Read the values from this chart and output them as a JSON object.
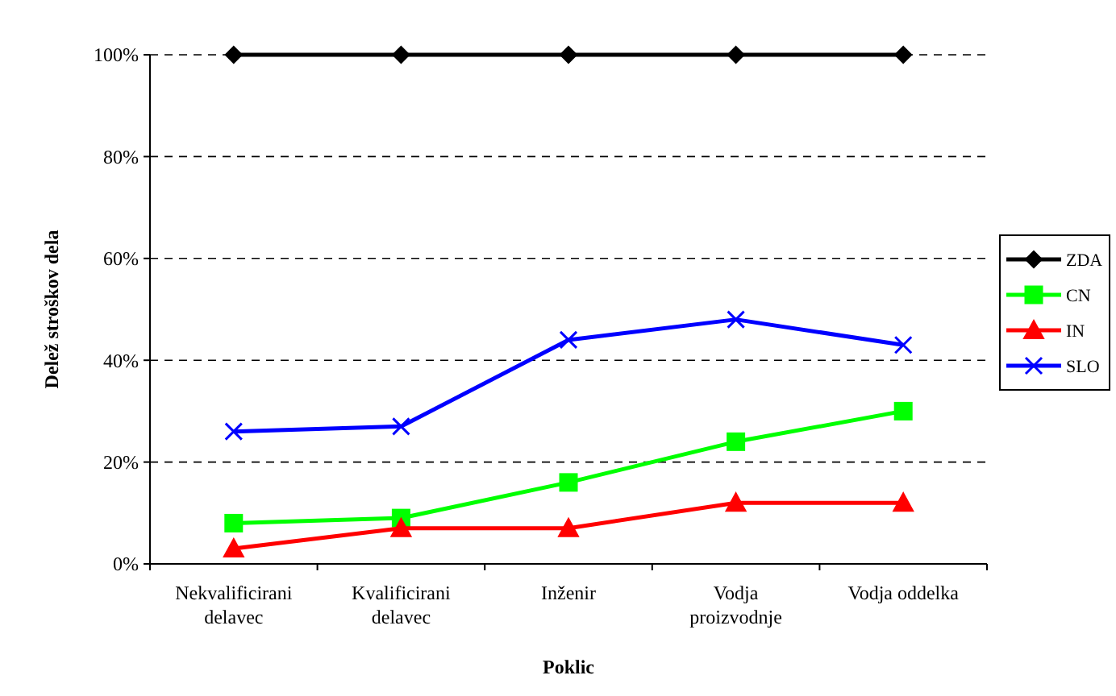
{
  "chart_data": {
    "type": "line",
    "xlabel": "Poklic",
    "ylabel": "Delež stroškov dela",
    "categories": [
      "Nekvalificirani\ndelavec",
      "Kvalificirani\ndelavec",
      "Inženir",
      "Vodja\nproizvodnje",
      "Vodja oddelka"
    ],
    "series": [
      {
        "name": "ZDA",
        "color": "#000000",
        "marker": "diamond",
        "values": [
          100,
          100,
          100,
          100,
          100
        ]
      },
      {
        "name": "CN",
        "color": "#00ff00",
        "marker": "square",
        "values": [
          8,
          9,
          16,
          24,
          30
        ]
      },
      {
        "name": "IN",
        "color": "#ff0000",
        "marker": "triangle",
        "values": [
          3,
          7,
          7,
          12,
          12
        ]
      },
      {
        "name": "SLO",
        "color": "#0000ff",
        "marker": "cross",
        "values": [
          26,
          27,
          44,
          48,
          43
        ]
      }
    ],
    "ylim": [
      0,
      100
    ],
    "yticks": [
      {
        "value": 0,
        "label": "0%"
      },
      {
        "value": 20,
        "label": "20%"
      },
      {
        "value": 40,
        "label": "40%"
      },
      {
        "value": 60,
        "label": "60%"
      },
      {
        "value": 80,
        "label": "80%"
      },
      {
        "value": 100,
        "label": "100%"
      }
    ],
    "grid": "y",
    "legend": "right",
    "line_style": "solid"
  }
}
